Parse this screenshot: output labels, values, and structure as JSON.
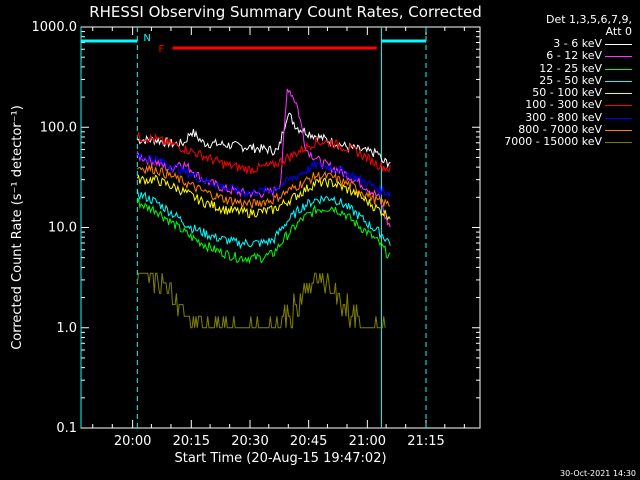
{
  "chart_data": {
    "type": "line",
    "title": "RHESSI Observing Summary Count Rates, Corrected",
    "xlabel": "Start Time (20-Aug-15 19:47:02)",
    "ylabel": "Corrected Count Rate (s⁻¹ detector⁻¹)",
    "yscale": "log",
    "ylim": [
      0.1,
      1000
    ],
    "xlim_minutes": [
      19.78,
      21.48
    ],
    "x_ticks": [
      "20:00",
      "20:15",
      "20:30",
      "20:45",
      "21:00",
      "21:15"
    ],
    "x_tick_minutes": [
      20.0,
      20.25,
      20.5,
      20.75,
      21.0,
      21.25
    ],
    "y_ticks": [
      "0.1",
      "1.0",
      "10.0",
      "100.0",
      "1000.0"
    ],
    "y_tick_values": [
      0.1,
      1,
      10,
      100,
      1000
    ],
    "legend_header": [
      "Det 1,3,5,6,7,9,",
      "Att 0"
    ],
    "series": [
      {
        "name": "3 - 6 keV",
        "color": "#ffffff",
        "x": [
          20.02,
          20.1,
          20.18,
          20.22,
          20.25,
          20.3,
          20.4,
          20.5,
          20.58,
          20.62,
          20.66,
          20.7,
          20.78,
          20.85,
          20.92,
          21.0,
          21.05,
          21.06,
          21.1
        ],
        "y": [
          75,
          75,
          68,
          70,
          92,
          70,
          67,
          63,
          60,
          58,
          140,
          100,
          82,
          72,
          63,
          57,
          55,
          45,
          45
        ]
      },
      {
        "name": "6 - 12 keV",
        "color": "#ff33ff",
        "x": [
          20.02,
          20.1,
          20.16,
          20.2,
          20.25,
          20.3,
          20.4,
          20.48,
          20.55,
          20.6,
          20.63,
          20.66,
          20.7,
          20.74,
          20.8,
          20.9,
          21.0,
          21.05,
          21.08,
          21.1
        ],
        "y": [
          52,
          45,
          38,
          45,
          38,
          30,
          24,
          22,
          22,
          23,
          28,
          260,
          170,
          60,
          45,
          35,
          25,
          20,
          12,
          10
        ]
      },
      {
        "name": "12 - 25 keV",
        "color": "#00ff00",
        "x": [
          20.02,
          20.06,
          20.1,
          20.15,
          20.25,
          20.35,
          20.45,
          20.55,
          20.6,
          20.65,
          20.72,
          20.78,
          20.85,
          20.9,
          20.95,
          21.0,
          21.05,
          21.1
        ],
        "y": [
          18,
          16,
          15,
          12,
          8,
          6,
          5,
          5,
          5.5,
          8,
          12,
          15,
          16,
          14,
          11,
          9,
          7,
          5
        ]
      },
      {
        "name": "25 - 50 keV",
        "color": "#00ffff",
        "x": [
          20.02,
          20.06,
          20.1,
          20.15,
          20.25,
          20.35,
          20.45,
          20.55,
          20.6,
          20.65,
          20.72,
          20.78,
          20.85,
          20.9,
          20.95,
          21.0,
          21.05,
          21.1
        ],
        "y": [
          22,
          20,
          18,
          15,
          10,
          8,
          7,
          7,
          7.5,
          11,
          16,
          19,
          20,
          17,
          14,
          11,
          9,
          7
        ]
      },
      {
        "name": "50 - 100 keV",
        "color": "#ffff00",
        "x": [
          20.02,
          20.1,
          20.2,
          20.3,
          20.4,
          20.5,
          20.6,
          20.7,
          20.78,
          20.85,
          20.95,
          21.05,
          21.1
        ],
        "y": [
          30,
          30,
          24,
          18,
          15,
          14,
          15,
          21,
          28,
          28,
          22,
          15,
          13
        ]
      },
      {
        "name": "100 - 300 keV",
        "color": "#ff0000",
        "x": [
          20.02,
          20.1,
          20.2,
          20.3,
          20.4,
          20.5,
          20.6,
          20.7,
          20.78,
          20.85,
          20.95,
          21.05,
          21.1
        ],
        "y": [
          80,
          76,
          64,
          52,
          42,
          38,
          42,
          56,
          72,
          70,
          58,
          42,
          38
        ]
      },
      {
        "name": "300 - 800 keV",
        "color": "#0000ff",
        "x": [
          20.02,
          20.1,
          20.2,
          20.3,
          20.4,
          20.5,
          20.6,
          20.7,
          20.78,
          20.85,
          20.95,
          21.05,
          21.1
        ],
        "y": [
          52,
          48,
          38,
          30,
          25,
          22,
          24,
          33,
          42,
          40,
          32,
          24,
          22
        ]
      },
      {
        "name": "800 - 7000 keV",
        "color": "#ff8000",
        "x": [
          20.02,
          20.1,
          20.2,
          20.3,
          20.4,
          20.5,
          20.6,
          20.7,
          20.78,
          20.85,
          20.95,
          21.05,
          21.1
        ],
        "y": [
          40,
          38,
          30,
          23,
          19,
          17,
          19,
          26,
          33,
          32,
          25,
          18,
          17
        ]
      },
      {
        "name": "7000 - 15000 keV",
        "color": "#808000",
        "x": [
          20.02,
          20.06,
          20.1,
          20.15,
          20.18,
          20.25,
          20.35,
          20.5,
          20.6,
          20.68,
          20.72,
          20.78,
          20.82,
          20.88,
          20.95,
          21.02,
          21.08
        ],
        "y": [
          3.8,
          3.5,
          3.0,
          2.5,
          1.7,
          1.3,
          1.0,
          1.0,
          1.0,
          1.4,
          2.2,
          3.0,
          3.0,
          2.0,
          1.2,
          1.0,
          1.0
        ]
      }
    ],
    "annotations": [
      {
        "label": "N",
        "color": "#00ffff"
      },
      {
        "label": "F",
        "color": "#ff0000"
      }
    ],
    "night_periods": [
      [
        19.78,
        20.02
      ],
      [
        21.06,
        21.25
      ]
    ],
    "flare_period": [
      20.17,
      21.04
    ]
  },
  "footer": "30-Oct-2021 14:30"
}
